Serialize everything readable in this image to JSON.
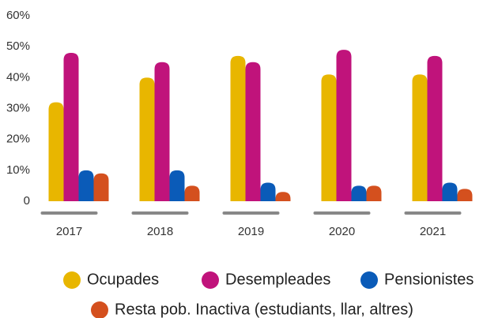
{
  "chart_data": {
    "type": "bar",
    "categories": [
      "2017",
      "2018",
      "2019",
      "2020",
      "2021"
    ],
    "series": [
      {
        "name": "Ocupades",
        "color": "#e8b600",
        "values": [
          32,
          40,
          47,
          41,
          41
        ]
      },
      {
        "name": "Desempleades",
        "color": "#c0137b",
        "values": [
          48,
          45,
          45,
          49,
          47
        ]
      },
      {
        "name": "Pensionistes",
        "color": "#0a5bb8",
        "values": [
          10,
          10,
          6,
          5,
          6
        ]
      },
      {
        "name": "Resta pob. Inactiva (estudiants, llar, altres)",
        "color": "#d4501e",
        "values": [
          9,
          5,
          3,
          5,
          4
        ]
      }
    ],
    "ylim": [
      0,
      60
    ],
    "yticks": [
      0,
      {
        "value": 10,
        "label": "10%"
      },
      {
        "value": 20,
        "label": "20%"
      },
      {
        "value": 30,
        "label": "30%"
      },
      {
        "value": 40,
        "label": "40%"
      },
      {
        "value": 50,
        "label": "50%"
      },
      {
        "value": 60,
        "label": "60%"
      }
    ],
    "grid": false
  }
}
